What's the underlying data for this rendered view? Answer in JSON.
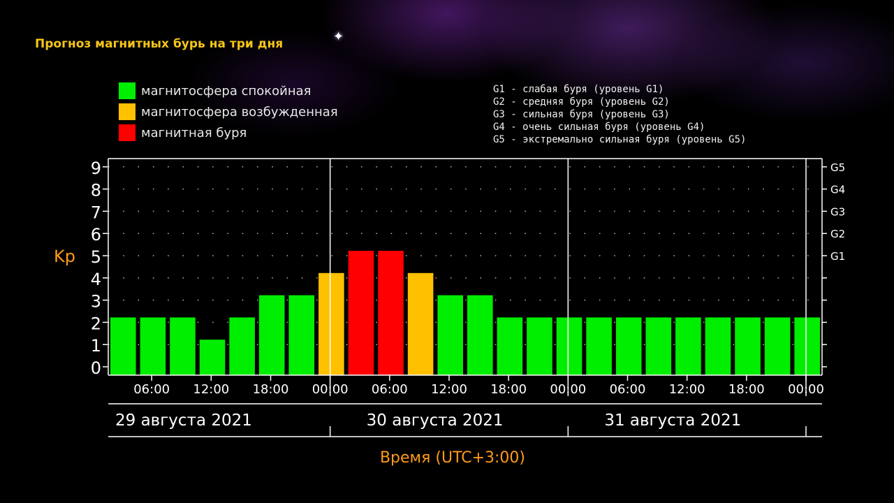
{
  "title": "Прогноз магнитных бурь на три дня",
  "legend": [
    {
      "label": "магнитосфера спокойная",
      "color": "#00ee00"
    },
    {
      "label": "магнитосфера возбужденная",
      "color": "#ffc000"
    },
    {
      "label": "магнитная буря",
      "color": "#ff0000"
    }
  ],
  "g_levels": [
    "G1 - слабая буря (уровень G1)",
    "G2 - средняя буря (уровень G2)",
    "G3 - сильная буря (уровень G3)",
    "G4 - очень сильная буря (уровень G4)",
    "G5 - экстремально сильная буря (уровень G5)"
  ],
  "chart_data": {
    "type": "bar",
    "ylabel": "Kp",
    "xlabel": "Время (UTC+3:00)",
    "ylim": [
      0,
      9
    ],
    "y_ticks": [
      "0",
      "1",
      "2",
      "3",
      "4",
      "5",
      "6",
      "7",
      "8",
      "9"
    ],
    "g_ticks": [
      {
        "label": "G1",
        "kp": 5
      },
      {
        "label": "G2",
        "kp": 6
      },
      {
        "label": "G3",
        "kp": 7
      },
      {
        "label": "G4",
        "kp": 8
      },
      {
        "label": "G5",
        "kp": 9
      }
    ],
    "x_tick_labels": [
      "06:00",
      "12:00",
      "18:00",
      "00:00",
      "06:00",
      "12:00",
      "18:00",
      "00:00",
      "06:00",
      "12:00",
      "18:00",
      "00:00"
    ],
    "days": [
      "29 августа 2021",
      "30 августа 2021",
      "31 августа 2021"
    ],
    "values": [
      2,
      2,
      2,
      1,
      2,
      3,
      3,
      4,
      5,
      5,
      4,
      3,
      3,
      2,
      2,
      2,
      2,
      2,
      2,
      2,
      2,
      2,
      2,
      2
    ],
    "colors": {
      "quiet": "#00ee00",
      "active": "#ffc000",
      "storm": "#ff0000"
    },
    "grid": true,
    "legend_position": "top-left"
  }
}
